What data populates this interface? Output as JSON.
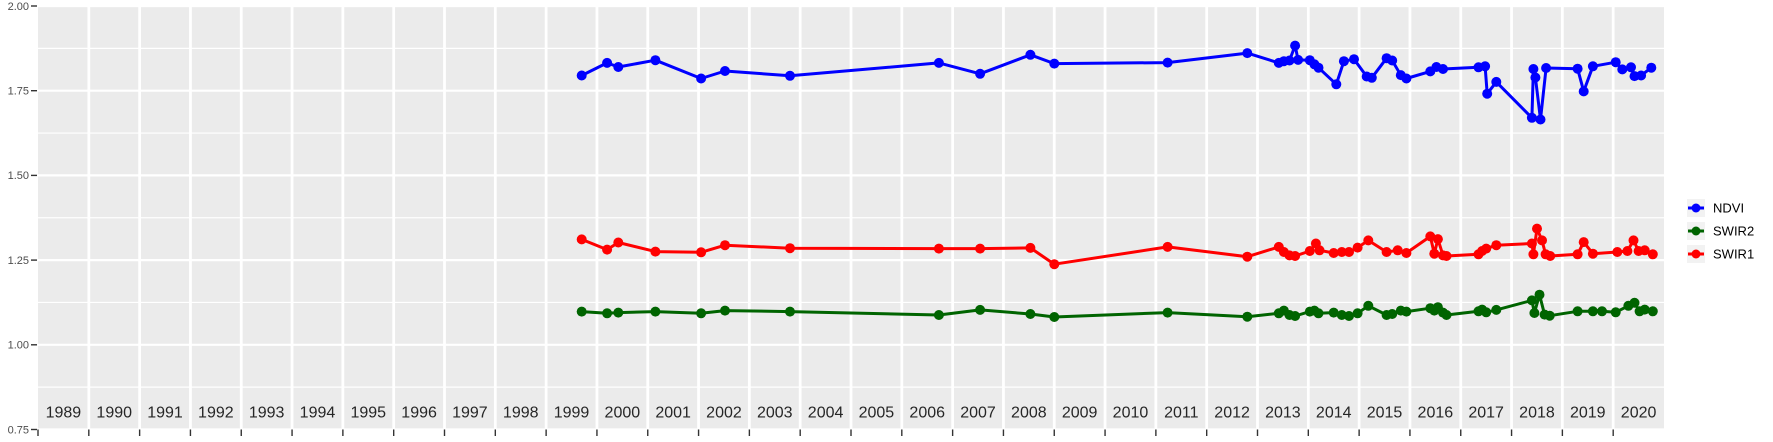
{
  "chart_data": {
    "type": "line",
    "title": "",
    "xlabel": "",
    "ylabel": "",
    "x_range": [
      1989,
      2021
    ],
    "y_range": [
      0.75,
      2.0
    ],
    "grid": true,
    "panel_background": "#EBEBEB",
    "gridline_color": "#FFFFFF",
    "axis_tick_color": "#333333",
    "x_tick_labels": [
      "1989",
      "1990",
      "1991",
      "1992",
      "1993",
      "1994",
      "1995",
      "1996",
      "1997",
      "1998",
      "1999",
      "2000",
      "2001",
      "2002",
      "2003",
      "2004",
      "2005",
      "2006",
      "2007",
      "2008",
      "2009",
      "2010",
      "2011",
      "2012",
      "2013",
      "2014",
      "2015",
      "2016",
      "2017",
      "2018",
      "2019",
      "2020"
    ],
    "y_tick_labels": [
      "2.00",
      "1.75",
      "1.50",
      "1.25",
      "1.00",
      "0.75"
    ],
    "y_tick_values": [
      2.0,
      1.75,
      1.5,
      1.25,
      1.0,
      0.75
    ],
    "y_minor_tick_values": [
      1.875,
      1.625,
      1.375,
      1.125,
      0.875
    ],
    "legend": {
      "position": "right",
      "key_background": "#F2F2F2",
      "entries": [
        "NDVI",
        "SWIR2",
        "SWIR1"
      ]
    },
    "series": [
      {
        "name": "NDVI",
        "color": "#0000FF",
        "points": [
          [
            1999.7,
            1.795
          ],
          [
            2000.2,
            1.832
          ],
          [
            2000.42,
            1.82
          ],
          [
            2001.15,
            1.84
          ],
          [
            2002.05,
            1.786
          ],
          [
            2002.52,
            1.808
          ],
          [
            2003.8,
            1.794
          ],
          [
            2006.73,
            1.832
          ],
          [
            2007.54,
            1.8
          ],
          [
            2008.53,
            1.856
          ],
          [
            2009.0,
            1.83
          ],
          [
            2011.23,
            1.833
          ],
          [
            2012.8,
            1.861
          ],
          [
            2013.42,
            1.832
          ],
          [
            2013.52,
            1.837
          ],
          [
            2013.63,
            1.839
          ],
          [
            2013.74,
            1.883
          ],
          [
            2013.8,
            1.841
          ],
          [
            2014.03,
            1.84
          ],
          [
            2014.12,
            1.828
          ],
          [
            2014.2,
            1.818
          ],
          [
            2014.55,
            1.769
          ],
          [
            2014.7,
            1.837
          ],
          [
            2014.9,
            1.843
          ],
          [
            2015.15,
            1.792
          ],
          [
            2015.25,
            1.788
          ],
          [
            2015.54,
            1.846
          ],
          [
            2015.65,
            1.839
          ],
          [
            2015.82,
            1.796
          ],
          [
            2015.93,
            1.786
          ],
          [
            2016.4,
            1.807
          ],
          [
            2016.52,
            1.82
          ],
          [
            2016.65,
            1.814
          ],
          [
            2017.35,
            1.819
          ],
          [
            2017.48,
            1.822
          ],
          [
            2017.52,
            1.741
          ],
          [
            2017.7,
            1.776
          ],
          [
            2018.4,
            1.67
          ],
          [
            2018.43,
            1.814
          ],
          [
            2018.47,
            1.789
          ],
          [
            2018.57,
            1.665
          ],
          [
            2018.68,
            1.817
          ],
          [
            2019.3,
            1.815
          ],
          [
            2019.42,
            1.748
          ],
          [
            2019.6,
            1.822
          ],
          [
            2020.05,
            1.834
          ],
          [
            2020.18,
            1.813
          ],
          [
            2020.35,
            1.819
          ],
          [
            2020.42,
            1.793
          ],
          [
            2020.55,
            1.795
          ],
          [
            2020.75,
            1.818
          ]
        ]
      },
      {
        "name": "SWIR2",
        "color": "#006400",
        "points": [
          [
            1999.7,
            1.098
          ],
          [
            2000.2,
            1.093
          ],
          [
            2000.42,
            1.095
          ],
          [
            2001.15,
            1.098
          ],
          [
            2002.05,
            1.093
          ],
          [
            2002.52,
            1.101
          ],
          [
            2003.8,
            1.098
          ],
          [
            2006.73,
            1.088
          ],
          [
            2007.54,
            1.103
          ],
          [
            2008.53,
            1.091
          ],
          [
            2009.0,
            1.082
          ],
          [
            2011.23,
            1.095
          ],
          [
            2012.8,
            1.083
          ],
          [
            2013.42,
            1.093
          ],
          [
            2013.52,
            1.101
          ],
          [
            2013.63,
            1.088
          ],
          [
            2013.74,
            1.085
          ],
          [
            2014.03,
            1.098
          ],
          [
            2014.12,
            1.101
          ],
          [
            2014.2,
            1.093
          ],
          [
            2014.5,
            1.095
          ],
          [
            2014.66,
            1.088
          ],
          [
            2014.8,
            1.085
          ],
          [
            2014.97,
            1.093
          ],
          [
            2015.18,
            1.115
          ],
          [
            2015.54,
            1.088
          ],
          [
            2015.65,
            1.091
          ],
          [
            2015.82,
            1.101
          ],
          [
            2015.93,
            1.098
          ],
          [
            2016.4,
            1.108
          ],
          [
            2016.48,
            1.101
          ],
          [
            2016.55,
            1.111
          ],
          [
            2016.65,
            1.095
          ],
          [
            2016.72,
            1.088
          ],
          [
            2017.35,
            1.099
          ],
          [
            2017.42,
            1.104
          ],
          [
            2017.5,
            1.096
          ],
          [
            2017.7,
            1.103
          ],
          [
            2018.4,
            1.131
          ],
          [
            2018.45,
            1.094
          ],
          [
            2018.55,
            1.148
          ],
          [
            2018.65,
            1.089
          ],
          [
            2018.75,
            1.086
          ],
          [
            2019.3,
            1.099
          ],
          [
            2019.6,
            1.099
          ],
          [
            2019.78,
            1.099
          ],
          [
            2020.05,
            1.096
          ],
          [
            2020.3,
            1.115
          ],
          [
            2020.42,
            1.124
          ],
          [
            2020.52,
            1.099
          ],
          [
            2020.62,
            1.104
          ],
          [
            2020.78,
            1.099
          ]
        ]
      },
      {
        "name": "SWIR1",
        "color": "#FF0000",
        "points": [
          [
            1999.7,
            1.311
          ],
          [
            2000.2,
            1.281
          ],
          [
            2000.42,
            1.302
          ],
          [
            2001.15,
            1.275
          ],
          [
            2002.05,
            1.273
          ],
          [
            2002.52,
            1.294
          ],
          [
            2003.8,
            1.285
          ],
          [
            2006.73,
            1.284
          ],
          [
            2007.54,
            1.284
          ],
          [
            2008.53,
            1.286
          ],
          [
            2009.0,
            1.238
          ],
          [
            2011.23,
            1.289
          ],
          [
            2012.8,
            1.26
          ],
          [
            2013.42,
            1.289
          ],
          [
            2013.52,
            1.274
          ],
          [
            2013.63,
            1.264
          ],
          [
            2013.74,
            1.262
          ],
          [
            2014.03,
            1.277
          ],
          [
            2014.15,
            1.299
          ],
          [
            2014.22,
            1.279
          ],
          [
            2014.5,
            1.271
          ],
          [
            2014.66,
            1.274
          ],
          [
            2014.8,
            1.274
          ],
          [
            2014.97,
            1.287
          ],
          [
            2015.18,
            1.308
          ],
          [
            2015.54,
            1.274
          ],
          [
            2015.76,
            1.279
          ],
          [
            2015.93,
            1.271
          ],
          [
            2016.4,
            1.32
          ],
          [
            2016.48,
            1.269
          ],
          [
            2016.55,
            1.312
          ],
          [
            2016.65,
            1.264
          ],
          [
            2016.72,
            1.262
          ],
          [
            2017.35,
            1.267
          ],
          [
            2017.42,
            1.277
          ],
          [
            2017.5,
            1.284
          ],
          [
            2017.7,
            1.294
          ],
          [
            2018.4,
            1.299
          ],
          [
            2018.43,
            1.267
          ],
          [
            2018.5,
            1.343
          ],
          [
            2018.6,
            1.308
          ],
          [
            2018.67,
            1.267
          ],
          [
            2018.76,
            1.262
          ],
          [
            2019.3,
            1.267
          ],
          [
            2019.42,
            1.303
          ],
          [
            2019.6,
            1.269
          ],
          [
            2020.08,
            1.274
          ],
          [
            2020.28,
            1.277
          ],
          [
            2020.4,
            1.308
          ],
          [
            2020.5,
            1.277
          ],
          [
            2020.62,
            1.279
          ],
          [
            2020.78,
            1.267
          ]
        ]
      }
    ]
  }
}
